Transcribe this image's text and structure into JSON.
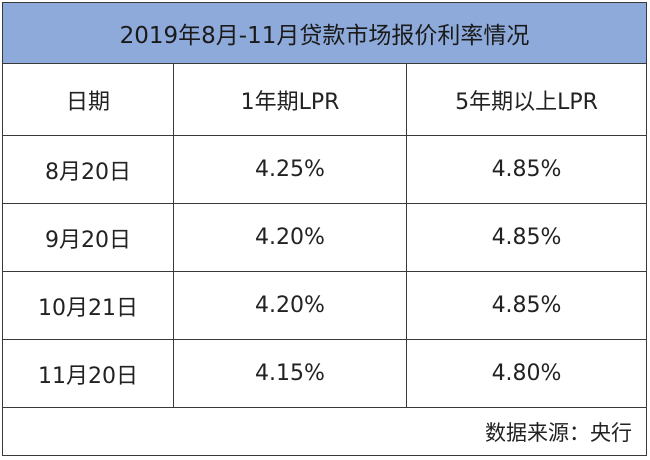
{
  "title": "2019年8月-11月贷款市场报价利率情况",
  "columns": [
    "日期",
    "1年期LPR",
    "5年期以上LPR"
  ],
  "rows": [
    [
      "8月20日",
      "4.25%",
      "4.85%"
    ],
    [
      "9月20日",
      "4.20%",
      "4.85%"
    ],
    [
      "10月21日",
      "4.20%",
      "4.85%"
    ],
    [
      "11月20日",
      "4.15%",
      "4.80%"
    ]
  ],
  "source": "数据来源：央行",
  "colors": {
    "title_bg": "#8eaadb",
    "border": "#3a3a3a"
  }
}
